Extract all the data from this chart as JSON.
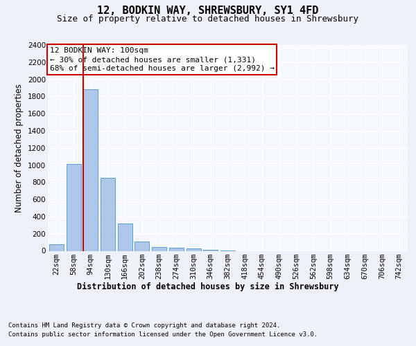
{
  "title": "12, BODKIN WAY, SHREWSBURY, SY1 4FD",
  "subtitle": "Size of property relative to detached houses in Shrewsbury",
  "xlabel": "Distribution of detached houses by size in Shrewsbury",
  "ylabel": "Number of detached properties",
  "bin_labels": [
    "22sqm",
    "58sqm",
    "94sqm",
    "130sqm",
    "166sqm",
    "202sqm",
    "238sqm",
    "274sqm",
    "310sqm",
    "346sqm",
    "382sqm",
    "418sqm",
    "454sqm",
    "490sqm",
    "526sqm",
    "562sqm",
    "598sqm",
    "634sqm",
    "670sqm",
    "706sqm",
    "742sqm"
  ],
  "bar_heights": [
    80,
    1010,
    1880,
    855,
    315,
    110,
    45,
    35,
    25,
    15,
    5,
    0,
    0,
    0,
    0,
    0,
    0,
    0,
    0,
    0,
    0
  ],
  "bar_color": "#aec6e8",
  "bar_edge_color": "#5a9fd4",
  "property_line_color": "#cc0000",
  "annotation_text": "12 BODKIN WAY: 100sqm\n← 30% of detached houses are smaller (1,331)\n68% of semi-detached houses are larger (2,992) →",
  "annotation_box_color": "#ffffff",
  "annotation_box_edgecolor": "#cc0000",
  "ylim": [
    0,
    2400
  ],
  "yticks": [
    0,
    200,
    400,
    600,
    800,
    1000,
    1200,
    1400,
    1600,
    1800,
    2000,
    2200,
    2400
  ],
  "footnote1": "Contains HM Land Registry data © Crown copyright and database right 2024.",
  "footnote2": "Contains public sector information licensed under the Open Government Licence v3.0.",
  "bg_color": "#eef2f8",
  "plot_bg_color": "#f5f8fd",
  "title_fontsize": 11,
  "subtitle_fontsize": 9,
  "axis_label_fontsize": 8.5,
  "tick_fontsize": 7.5,
  "annotation_fontsize": 8,
  "footnote_fontsize": 6.5
}
